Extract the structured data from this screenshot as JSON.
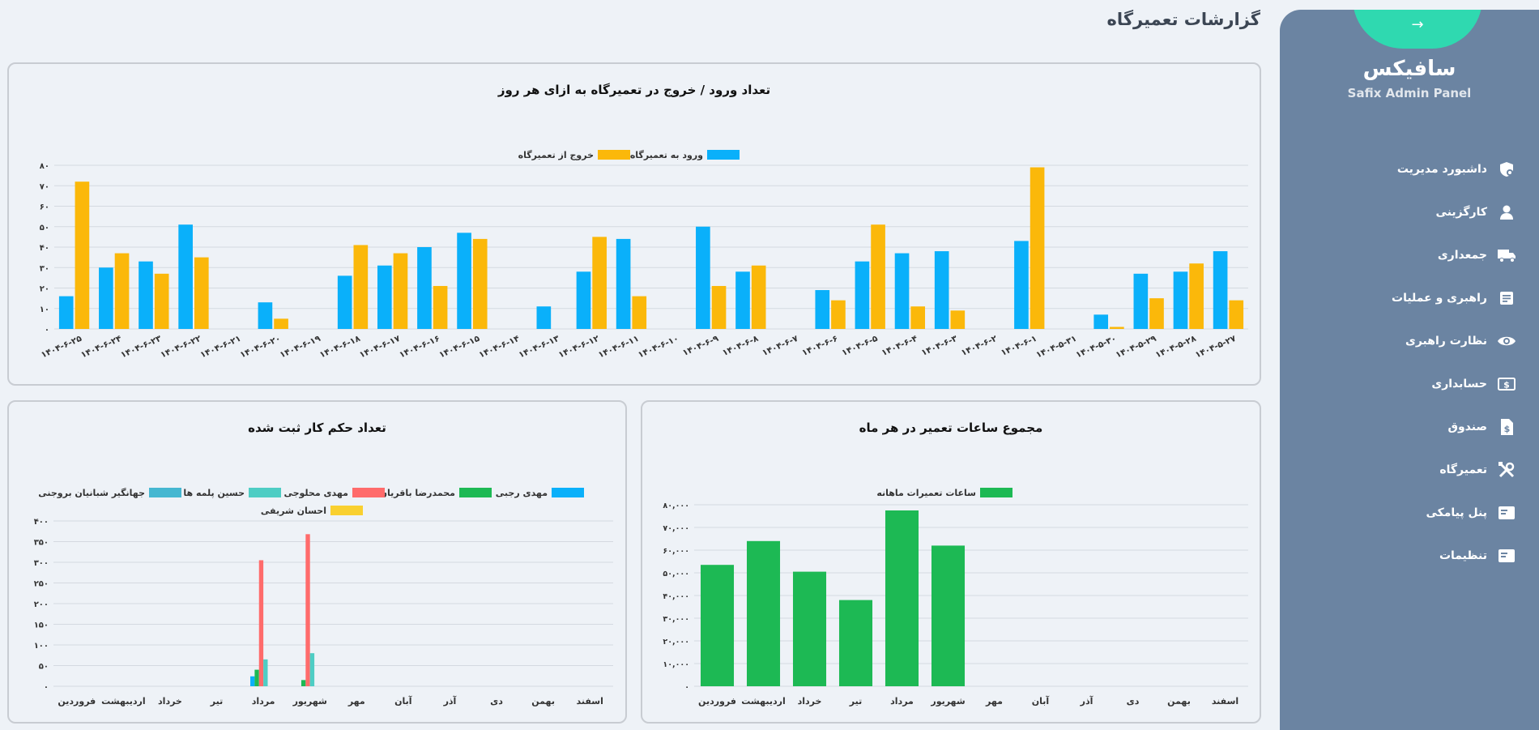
{
  "page_title": "گزارشات تعمیرگاه",
  "sidebar": {
    "toggle_glyph": "→",
    "brand_fa": "سافیکس",
    "brand_en": "Safix Admin Panel",
    "items": [
      {
        "label": "داشبورد مدیریت",
        "icon": "dashboard-shield-icon"
      },
      {
        "label": "کارگزینی",
        "icon": "person-icon"
      },
      {
        "label": "جمعداری",
        "icon": "truck-icon"
      },
      {
        "label": "راهبری و عملیات",
        "icon": "document-icon"
      },
      {
        "label": "نظارت راهبری",
        "icon": "eye-icon"
      },
      {
        "label": "حسابداری",
        "icon": "cash-icon"
      },
      {
        "label": "صندوق",
        "icon": "invoice-dollar-icon"
      },
      {
        "label": "تعمیرگاه",
        "icon": "tools-icon"
      },
      {
        "label": "پنل پیامکی",
        "icon": "sms-panel-icon"
      },
      {
        "label": "تنظیمات",
        "icon": "settings-panel-icon"
      }
    ]
  },
  "chart_data": [
    {
      "type": "bar",
      "title": "تعداد ورود / خروج در تعمیرگاه به ازای هر روز",
      "categories": [
        "۱۴۰۴-۶-۲۵",
        "۱۴۰۴-۶-۲۴",
        "۱۴۰۴-۶-۲۳",
        "۱۴۰۴-۶-۲۲",
        "۱۴۰۴-۶-۲۱",
        "۱۴۰۴-۶-۲۰",
        "۱۴۰۴-۶-۱۹",
        "۱۴۰۴-۶-۱۸",
        "۱۴۰۴-۶-۱۷",
        "۱۴۰۴-۶-۱۶",
        "۱۴۰۴-۶-۱۵",
        "۱۴۰۴-۶-۱۴",
        "۱۴۰۴-۶-۱۳",
        "۱۴۰۴-۶-۱۲",
        "۱۴۰۴-۶-۱۱",
        "۱۴۰۴-۶-۱۰",
        "۱۴۰۴-۶-۹",
        "۱۴۰۴-۶-۸",
        "۱۴۰۴-۶-۷",
        "۱۴۰۴-۶-۶",
        "۱۴۰۴-۶-۵",
        "۱۴۰۴-۶-۴",
        "۱۴۰۴-۶-۳",
        "۱۴۰۴-۶-۲",
        "۱۴۰۴-۶-۱",
        "۱۴۰۴-۵-۳۱",
        "۱۴۰۴-۵-۳۰",
        "۱۴۰۴-۵-۲۹",
        "۱۴۰۴-۵-۲۸",
        "۱۴۰۴-۵-۲۷"
      ],
      "series": [
        {
          "name": "ورود به تعمیرگاه",
          "color": "#0ab0fa",
          "values": [
            16,
            30,
            33,
            51,
            0,
            13,
            0,
            26,
            31,
            40,
            47,
            0,
            11,
            28,
            44,
            0,
            50,
            28,
            0,
            19,
            33,
            37,
            38,
            0,
            43,
            0,
            7,
            27,
            28,
            38
          ]
        },
        {
          "name": "خروج از تعمیرگاه",
          "color": "#fbb80a",
          "values": [
            72,
            37,
            27,
            35,
            0,
            5,
            0,
            41,
            37,
            21,
            44,
            0,
            0,
            45,
            16,
            0,
            21,
            31,
            0,
            14,
            51,
            11,
            9,
            0,
            79,
            0,
            1,
            15,
            32,
            14
          ]
        }
      ],
      "yticks": [
        "۰",
        "۱۰",
        "۲۰",
        "۳۰",
        "۴۰",
        "۵۰",
        "۶۰",
        "۷۰",
        "۸۰"
      ],
      "ylim": [
        0,
        80
      ],
      "legend": "top"
    },
    {
      "type": "bar",
      "title": "تعداد حکم کار ثبت شده",
      "categories": [
        "فروردین",
        "اردیبهشت",
        "خرداد",
        "تیر",
        "مرداد",
        "شهریور",
        "مهر",
        "آبان",
        "آذر",
        "دی",
        "بهمن",
        "اسفند"
      ],
      "series": [
        {
          "name": "مهدی رجبی",
          "color": "#0ab0fa",
          "values": [
            0,
            0,
            0,
            0,
            24,
            0,
            0,
            0,
            0,
            0,
            0,
            0
          ]
        },
        {
          "name": "محمدرضا باقریان",
          "color": "#1db954",
          "values": [
            0,
            0,
            0,
            0,
            40,
            15,
            0,
            0,
            0,
            0,
            0,
            0
          ]
        },
        {
          "name": "مهدی محلوجی",
          "color": "#ff6b6b",
          "values": [
            0,
            0,
            0,
            0,
            305,
            368,
            0,
            0,
            0,
            0,
            0,
            0
          ]
        },
        {
          "name": "حسین پلمه ها",
          "color": "#4ecdc4",
          "values": [
            0,
            0,
            0,
            0,
            65,
            80,
            0,
            0,
            0,
            0,
            0,
            0
          ]
        },
        {
          "name": "جهانگیر شبانیان بروجنی",
          "color": "#45b7d1",
          "values": [
            0,
            0,
            0,
            0,
            0,
            0,
            0,
            0,
            0,
            0,
            0,
            0
          ]
        },
        {
          "name": "احسان شریفی",
          "color": "#f9d030",
          "values": [
            0,
            0,
            0,
            0,
            0,
            0,
            0,
            0,
            0,
            0,
            0,
            0
          ]
        }
      ],
      "yticks": [
        "۰",
        "۵۰",
        "۱۰۰",
        "۱۵۰",
        "۲۰۰",
        "۲۵۰",
        "۳۰۰",
        "۳۵۰",
        "۴۰۰"
      ],
      "ylim": [
        0,
        400
      ],
      "legend": "top"
    },
    {
      "type": "bar",
      "title": "مجموع ساعات تعمیر در هر ماه",
      "categories": [
        "فروردین",
        "اردیبهشت",
        "خرداد",
        "تیر",
        "مرداد",
        "شهریور",
        "مهر",
        "آبان",
        "آذر",
        "دی",
        "بهمن",
        "اسفند"
      ],
      "series": [
        {
          "name": "ساعات تعمیرات ماهانه",
          "color": "#1db954",
          "values": [
            53500,
            64000,
            50500,
            38000,
            77500,
            62000,
            0,
            0,
            0,
            0,
            0,
            0
          ]
        }
      ],
      "yticks": [
        "۰",
        "۱۰,۰۰۰",
        "۲۰,۰۰۰",
        "۳۰,۰۰۰",
        "۴۰,۰۰۰",
        "۵۰,۰۰۰",
        "۶۰,۰۰۰",
        "۷۰,۰۰۰",
        "۸۰,۰۰۰"
      ],
      "ylim": [
        0,
        80000
      ],
      "legend": "top"
    }
  ]
}
